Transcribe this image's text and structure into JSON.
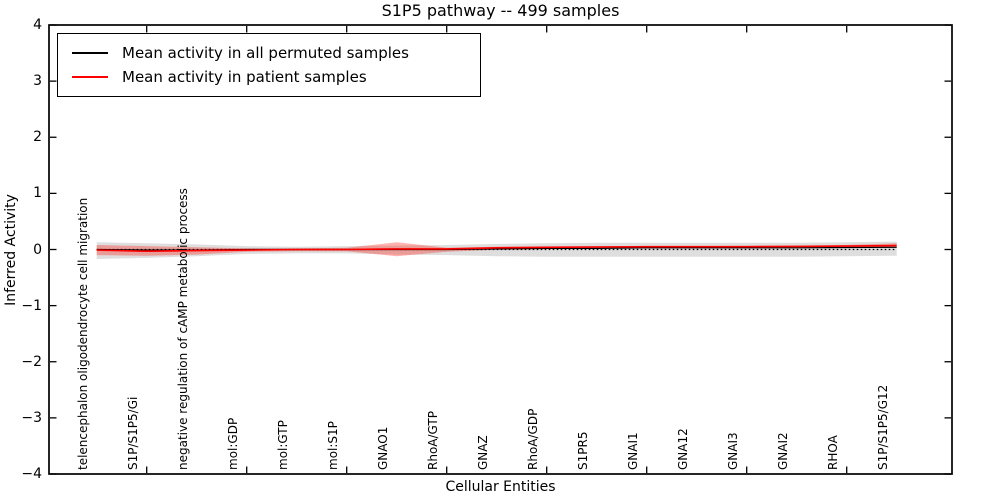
{
  "chart_data": {
    "type": "line",
    "title": "S1P5 pathway -- 499 samples",
    "xlabel": "Cellular Entities",
    "ylabel": "Inferred Activity",
    "ylim": [
      -4,
      4
    ],
    "yticks": [
      4,
      3,
      2,
      1,
      0,
      -1,
      -2,
      -3,
      -4
    ],
    "ytick_labels": [
      "4",
      "3",
      "2",
      "1",
      "0",
      "−1",
      "−2",
      "−3",
      "−4"
    ],
    "grid": false,
    "legend_position": "upper left",
    "zero_reference_line": {
      "value": 0,
      "style": "dotted",
      "color": "#000000"
    },
    "categories": [
      "telencephalon oligodendrocyte cell migration",
      "S1P/S1P5/Gi",
      "negative regulation of cAMP metabolic process",
      "mol:GDP",
      "mol:GTP",
      "mol:S1P",
      "GNAO1",
      "RhoA/GTP",
      "GNAZ",
      "RhoA/GDP",
      "S1PR5",
      "GNAI1",
      "GNA12",
      "GNAI3",
      "GNAI2",
      "RHOA",
      "S1P/S1P5/G12"
    ],
    "series": [
      {
        "name": "Mean activity in all permuted samples",
        "color": "#000000",
        "line_style": "solid",
        "values": [
          0.0,
          -0.01,
          -0.01,
          0.0,
          0.0,
          0.0,
          0.0,
          0.0,
          0.01,
          0.02,
          0.02,
          0.03,
          0.03,
          0.03,
          0.03,
          0.035,
          0.04
        ],
        "band_upper": [
          0.13,
          0.11,
          0.09,
          0.06,
          0.05,
          0.06,
          0.07,
          0.08,
          0.1,
          0.11,
          0.12,
          0.12,
          0.12,
          0.12,
          0.12,
          0.13,
          0.14
        ],
        "band_lower": [
          -0.17,
          -0.15,
          -0.12,
          -0.08,
          -0.07,
          -0.07,
          -0.09,
          -0.1,
          -0.12,
          -0.13,
          -0.13,
          -0.13,
          -0.13,
          -0.13,
          -0.13,
          -0.12,
          -0.11
        ],
        "band_color": "rgba(0,0,0,0.13)"
      },
      {
        "name": "Mean activity in patient samples",
        "color": "#ff0000",
        "line_style": "solid",
        "values": [
          -0.01,
          -0.03,
          -0.02,
          -0.01,
          0.0,
          0.0,
          0.01,
          0.01,
          0.03,
          0.04,
          0.045,
          0.05,
          0.05,
          0.05,
          0.055,
          0.06,
          0.07
        ],
        "band_upper": [
          0.08,
          0.06,
          0.04,
          0.02,
          0.02,
          0.03,
          0.13,
          0.03,
          0.05,
          0.055,
          0.06,
          0.06,
          0.06,
          0.065,
          0.07,
          0.08,
          0.11
        ],
        "band_lower": [
          -0.1,
          -0.11,
          -0.09,
          -0.04,
          -0.03,
          -0.03,
          -0.12,
          -0.04,
          -0.005,
          0.01,
          0.02,
          0.02,
          0.02,
          0.02,
          0.025,
          0.03,
          0.03
        ],
        "band_color": "rgba(255,20,10,0.33)"
      }
    ]
  }
}
